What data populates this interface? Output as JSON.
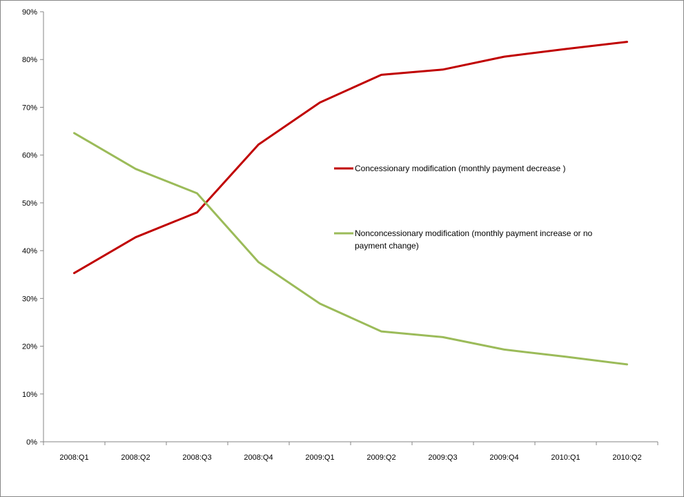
{
  "chart_data": {
    "type": "line",
    "title": "",
    "xlabel": "",
    "ylabel": "",
    "categories": [
      "2008:Q1",
      "2008:Q2",
      "2008:Q3",
      "2008:Q4",
      "2009:Q1",
      "2009:Q2",
      "2009:Q3",
      "2009:Q4",
      "2010:Q1",
      "2010:Q2"
    ],
    "ylim": [
      0,
      90
    ],
    "y_ticks": [
      0,
      10,
      20,
      30,
      40,
      50,
      60,
      70,
      80,
      90
    ],
    "y_tick_labels": [
      "0%",
      "10%",
      "20%",
      "30%",
      "40%",
      "50%",
      "60%",
      "70%",
      "80%",
      "90%"
    ],
    "y_unit": "%",
    "grid": false,
    "legend_position": "center-right inside plot",
    "series": [
      {
        "name": "Concessionary modification  (monthly payment decrease )",
        "color": "#C00000",
        "values": [
          35.3,
          42.8,
          48.0,
          62.2,
          71.0,
          76.8,
          77.9,
          80.6,
          82.2,
          83.7
        ]
      },
      {
        "name": "Nonconcessionary modification  (monthly payment increase or no payment change)",
        "name_lines": [
          "Nonconcessionary modification  (monthly payment increase or no",
          "payment change)"
        ],
        "color": "#9BBB59",
        "values": [
          64.6,
          57.1,
          52.0,
          37.6,
          28.9,
          23.1,
          21.9,
          19.3,
          17.8,
          16.2
        ]
      }
    ]
  }
}
